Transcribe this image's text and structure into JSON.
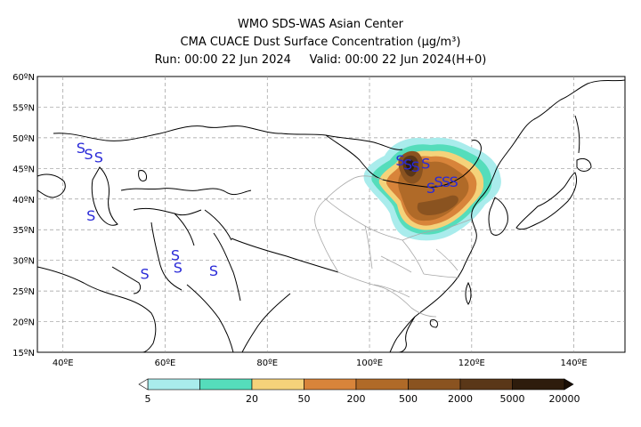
{
  "header": {
    "center": "WMO SDS-WAS Asian Center",
    "product": "CMA CUACE Dust Surface Concentration (μg/m³)",
    "run_label": "Run: 00:00 22 Jun 2024",
    "valid_label": "Valid: 00:00 22 Jun 2024(H+0)"
  },
  "map": {
    "lon_range": [
      35,
      150
    ],
    "lat_range": [
      15,
      60
    ],
    "lon_ticks": [
      "40ºE",
      "60ºE",
      "80ºE",
      "100ºE",
      "120ºE",
      "140ºE"
    ],
    "lat_ticks": [
      "15ºN",
      "20ºN",
      "25ºN",
      "30ºN",
      "35ºN",
      "40ºN",
      "45ºN",
      "50ºN",
      "55ºN",
      "60ºN"
    ],
    "grid": "dashed",
    "dust_symbol": "S",
    "dust_symbol_color": "#2a2ad8",
    "dust_symbols_lonlat": [
      [
        43.5,
        47.5
      ],
      [
        45,
        46.5
      ],
      [
        47,
        46
      ],
      [
        45.5,
        36.5
      ],
      [
        56,
        27
      ],
      [
        62,
        30
      ],
      [
        62.5,
        28
      ],
      [
        69.5,
        27.5
      ],
      [
        106,
        45.5
      ],
      [
        107.5,
        44.8
      ],
      [
        109,
        44.5
      ],
      [
        111,
        45
      ],
      [
        112,
        41
      ],
      [
        113.5,
        42
      ],
      [
        115,
        42
      ],
      [
        116.5,
        42
      ]
    ]
  },
  "colorbar": {
    "labels": [
      "5",
      "20",
      "50",
      "200",
      "500",
      "2000",
      "5000",
      "20000"
    ],
    "colors": [
      "#a9ecec",
      "#55ddbb",
      "#f5d27a",
      "#d8843a",
      "#b06a28",
      "#8a5320",
      "#5a3718",
      "#2e1c0c"
    ]
  }
}
